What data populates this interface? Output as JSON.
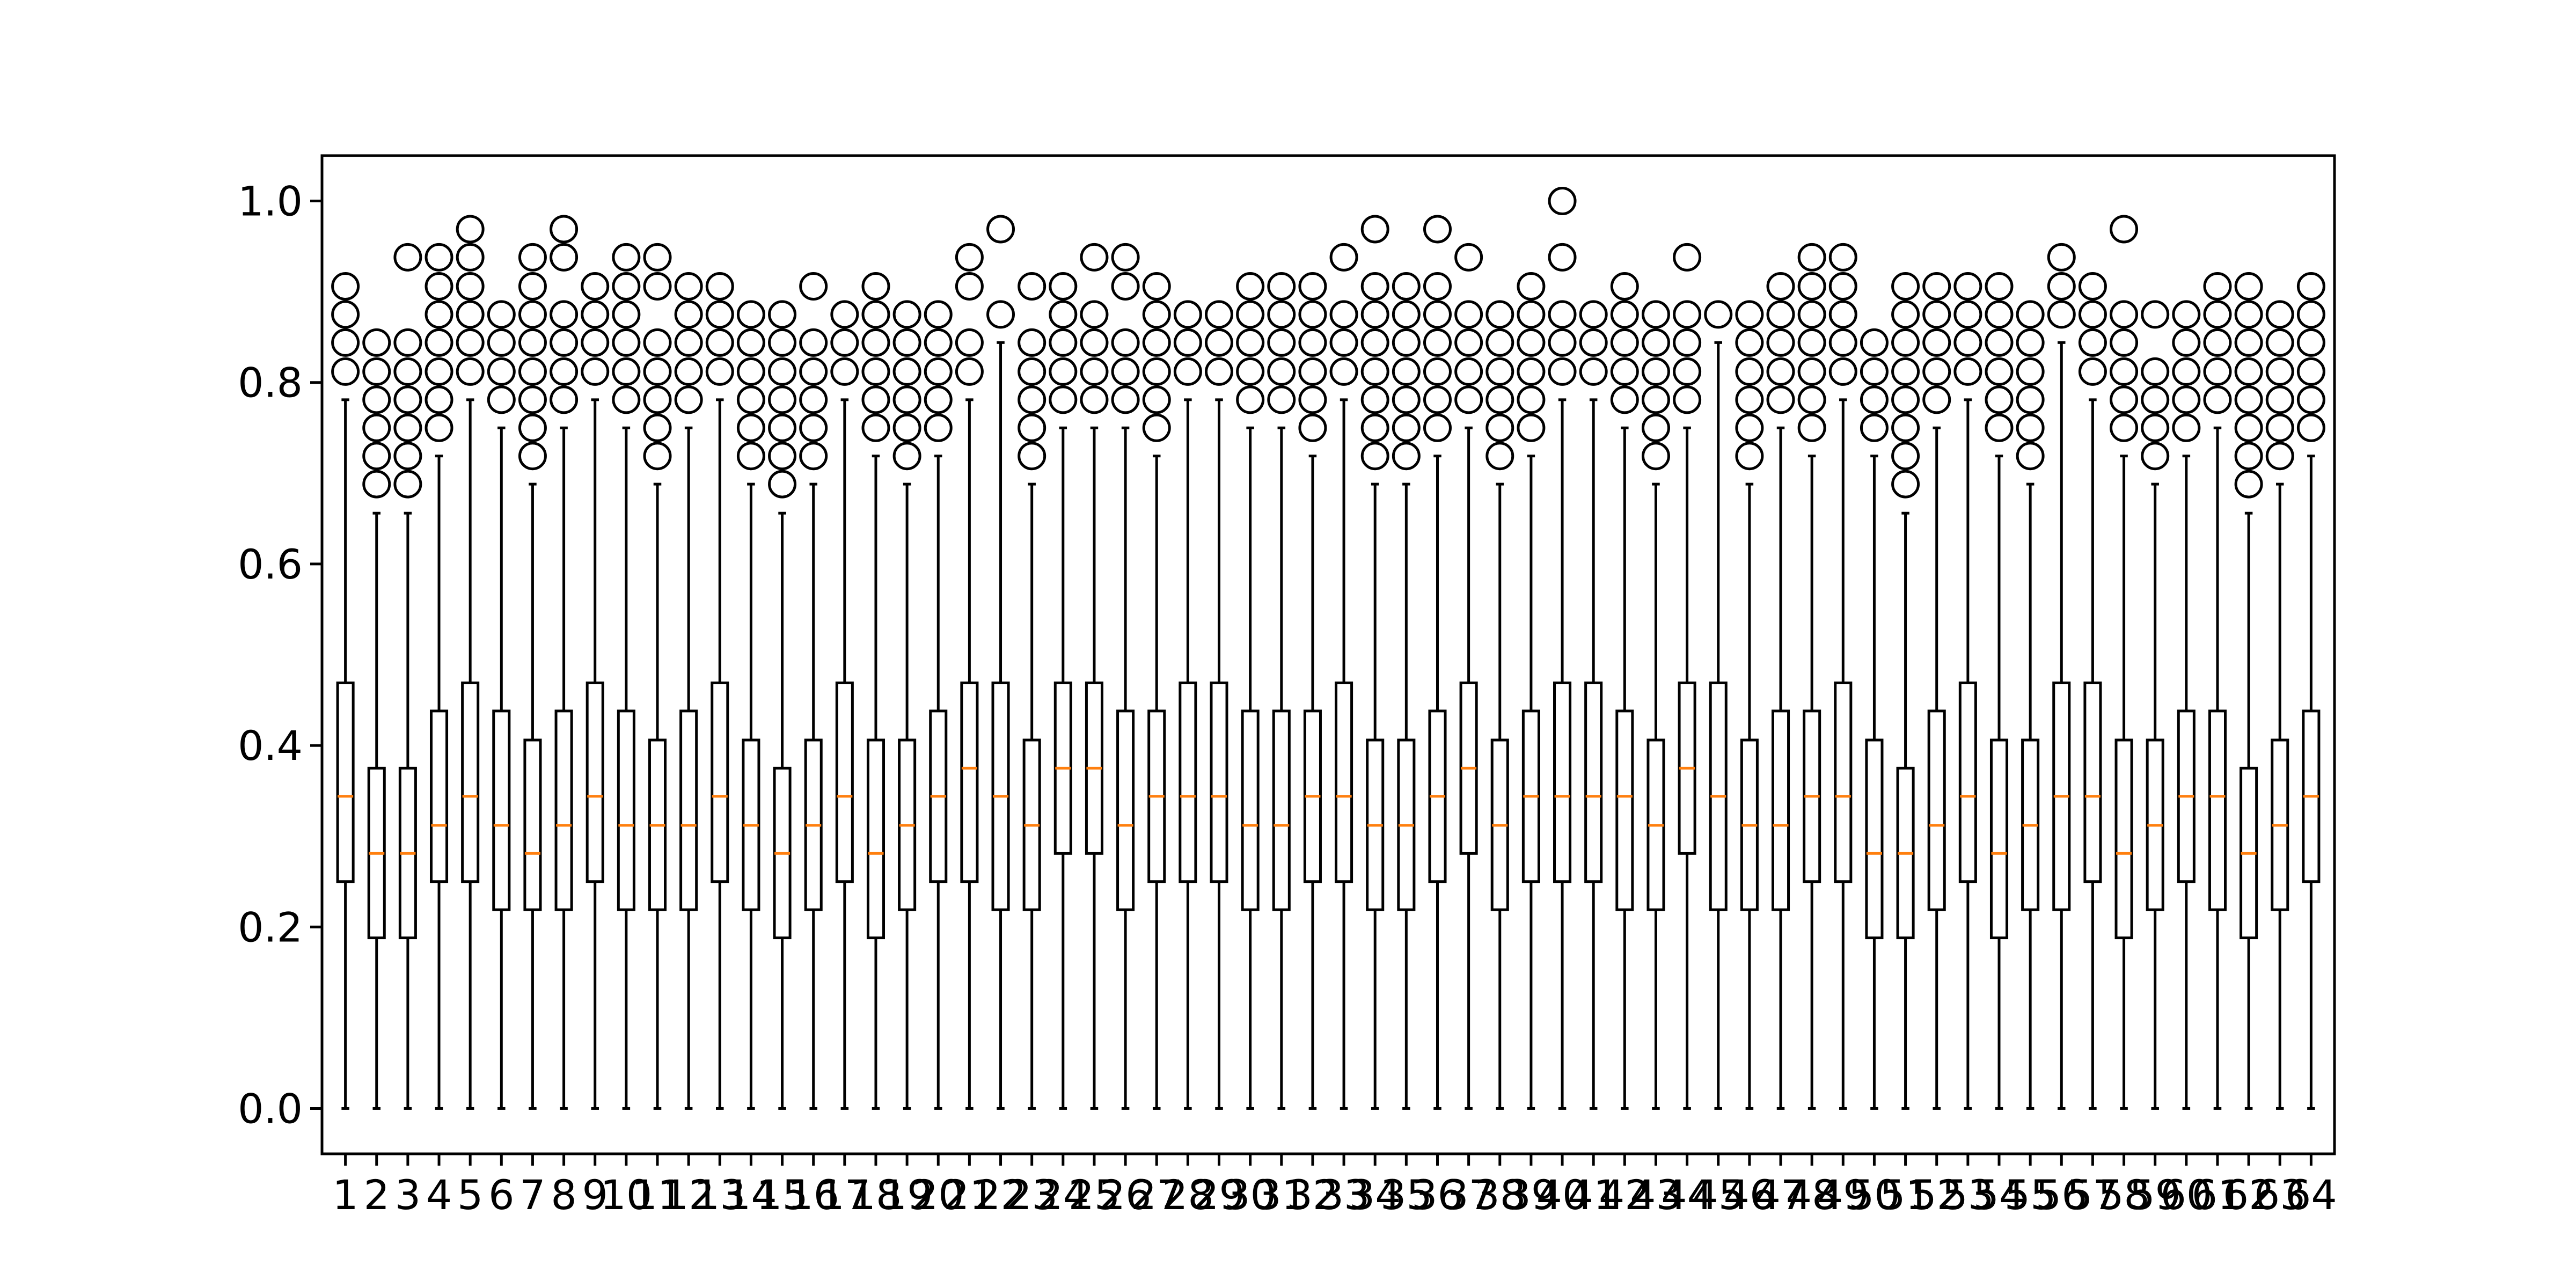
{
  "chart_data": {
    "type": "boxplot",
    "title": "",
    "xlabel": "",
    "ylabel": "",
    "ylim": [
      -0.05,
      1.05
    ],
    "y_ticks": [
      0.0,
      0.2,
      0.4,
      0.6,
      0.8,
      1.0
    ],
    "y_tick_labels": [
      "0.0",
      "0.2",
      "0.4",
      "0.6",
      "0.8",
      "1.0"
    ],
    "categories": [
      "1",
      "2",
      "3",
      "4",
      "5",
      "6",
      "7",
      "8",
      "9",
      "10",
      "11",
      "12",
      "13",
      "14",
      "15",
      "16",
      "17",
      "18",
      "19",
      "20",
      "21",
      "22",
      "23",
      "24",
      "25",
      "26",
      "27",
      "28",
      "29",
      "30",
      "31",
      "32",
      "33",
      "34",
      "35",
      "36",
      "37",
      "38",
      "39",
      "40",
      "41",
      "42",
      "43",
      "44",
      "45",
      "46",
      "47",
      "48",
      "49",
      "50",
      "51",
      "52",
      "53",
      "54",
      "55",
      "56",
      "57",
      "58",
      "59",
      "60",
      "61",
      "62",
      "63",
      "64"
    ],
    "grid": false,
    "legend": "none",
    "box_edge_color": "#000000",
    "median_color": "#ff7f0e",
    "flier_style": "open-circle",
    "boxes": [
      {
        "q1": 0.25,
        "median": 0.344,
        "q3": 0.469,
        "whisker_low": 0.0,
        "whisker_high": 0.781,
        "fliers": [
          0.812,
          0.844,
          0.875,
          0.906
        ]
      },
      {
        "q1": 0.188,
        "median": 0.281,
        "q3": 0.375,
        "whisker_low": 0.0,
        "whisker_high": 0.656,
        "fliers": [
          0.688,
          0.719,
          0.75,
          0.781,
          0.812,
          0.844
        ]
      },
      {
        "q1": 0.188,
        "median": 0.281,
        "q3": 0.375,
        "whisker_low": 0.0,
        "whisker_high": 0.656,
        "fliers": [
          0.688,
          0.719,
          0.75,
          0.781,
          0.812,
          0.844,
          0.938
        ]
      },
      {
        "q1": 0.25,
        "median": 0.312,
        "q3": 0.438,
        "whisker_low": 0.0,
        "whisker_high": 0.719,
        "fliers": [
          0.75,
          0.781,
          0.812,
          0.844,
          0.875,
          0.906,
          0.938
        ]
      },
      {
        "q1": 0.25,
        "median": 0.344,
        "q3": 0.469,
        "whisker_low": 0.0,
        "whisker_high": 0.781,
        "fliers": [
          0.812,
          0.844,
          0.875,
          0.906,
          0.938,
          0.969
        ]
      },
      {
        "q1": 0.219,
        "median": 0.312,
        "q3": 0.438,
        "whisker_low": 0.0,
        "whisker_high": 0.75,
        "fliers": [
          0.781,
          0.812,
          0.844,
          0.875
        ]
      },
      {
        "q1": 0.219,
        "median": 0.281,
        "q3": 0.406,
        "whisker_low": 0.0,
        "whisker_high": 0.688,
        "fliers": [
          0.719,
          0.75,
          0.781,
          0.812,
          0.844,
          0.875,
          0.906,
          0.938
        ]
      },
      {
        "q1": 0.219,
        "median": 0.312,
        "q3": 0.438,
        "whisker_low": 0.0,
        "whisker_high": 0.75,
        "fliers": [
          0.781,
          0.812,
          0.844,
          0.875,
          0.938,
          0.969
        ]
      },
      {
        "q1": 0.25,
        "median": 0.344,
        "q3": 0.469,
        "whisker_low": 0.0,
        "whisker_high": 0.781,
        "fliers": [
          0.812,
          0.844,
          0.875,
          0.906
        ]
      },
      {
        "q1": 0.219,
        "median": 0.312,
        "q3": 0.438,
        "whisker_low": 0.0,
        "whisker_high": 0.75,
        "fliers": [
          0.781,
          0.812,
          0.844,
          0.875,
          0.906,
          0.938
        ]
      },
      {
        "q1": 0.219,
        "median": 0.312,
        "q3": 0.406,
        "whisker_low": 0.0,
        "whisker_high": 0.688,
        "fliers": [
          0.719,
          0.75,
          0.781,
          0.812,
          0.844,
          0.906,
          0.938
        ]
      },
      {
        "q1": 0.219,
        "median": 0.312,
        "q3": 0.438,
        "whisker_low": 0.0,
        "whisker_high": 0.75,
        "fliers": [
          0.781,
          0.812,
          0.844,
          0.875,
          0.906
        ]
      },
      {
        "q1": 0.25,
        "median": 0.344,
        "q3": 0.469,
        "whisker_low": 0.0,
        "whisker_high": 0.781,
        "fliers": [
          0.812,
          0.844,
          0.875,
          0.906
        ]
      },
      {
        "q1": 0.219,
        "median": 0.312,
        "q3": 0.406,
        "whisker_low": 0.0,
        "whisker_high": 0.688,
        "fliers": [
          0.719,
          0.75,
          0.781,
          0.812,
          0.844,
          0.875
        ]
      },
      {
        "q1": 0.188,
        "median": 0.281,
        "q3": 0.375,
        "whisker_low": 0.0,
        "whisker_high": 0.656,
        "fliers": [
          0.688,
          0.719,
          0.75,
          0.781,
          0.812,
          0.844,
          0.875
        ]
      },
      {
        "q1": 0.219,
        "median": 0.312,
        "q3": 0.406,
        "whisker_low": 0.0,
        "whisker_high": 0.688,
        "fliers": [
          0.719,
          0.75,
          0.781,
          0.812,
          0.844,
          0.906
        ]
      },
      {
        "q1": 0.25,
        "median": 0.344,
        "q3": 0.469,
        "whisker_low": 0.0,
        "whisker_high": 0.781,
        "fliers": [
          0.812,
          0.844,
          0.875
        ]
      },
      {
        "q1": 0.188,
        "median": 0.281,
        "q3": 0.406,
        "whisker_low": 0.0,
        "whisker_high": 0.719,
        "fliers": [
          0.75,
          0.781,
          0.812,
          0.844,
          0.875,
          0.906
        ]
      },
      {
        "q1": 0.219,
        "median": 0.312,
        "q3": 0.406,
        "whisker_low": 0.0,
        "whisker_high": 0.688,
        "fliers": [
          0.719,
          0.75,
          0.781,
          0.812,
          0.844,
          0.875
        ]
      },
      {
        "q1": 0.25,
        "median": 0.344,
        "q3": 0.438,
        "whisker_low": 0.0,
        "whisker_high": 0.719,
        "fliers": [
          0.75,
          0.781,
          0.812,
          0.844,
          0.875
        ]
      },
      {
        "q1": 0.25,
        "median": 0.375,
        "q3": 0.469,
        "whisker_low": 0.0,
        "whisker_high": 0.781,
        "fliers": [
          0.812,
          0.844,
          0.906,
          0.938
        ]
      },
      {
        "q1": 0.219,
        "median": 0.344,
        "q3": 0.469,
        "whisker_low": 0.0,
        "whisker_high": 0.844,
        "fliers": [
          0.875,
          0.969
        ]
      },
      {
        "q1": 0.219,
        "median": 0.312,
        "q3": 0.406,
        "whisker_low": 0.0,
        "whisker_high": 0.688,
        "fliers": [
          0.719,
          0.75,
          0.781,
          0.812,
          0.844,
          0.906
        ]
      },
      {
        "q1": 0.281,
        "median": 0.375,
        "q3": 0.469,
        "whisker_low": 0.0,
        "whisker_high": 0.75,
        "fliers": [
          0.781,
          0.812,
          0.844,
          0.875,
          0.906
        ]
      },
      {
        "q1": 0.281,
        "median": 0.375,
        "q3": 0.469,
        "whisker_low": 0.0,
        "whisker_high": 0.75,
        "fliers": [
          0.781,
          0.812,
          0.844,
          0.875,
          0.938
        ]
      },
      {
        "q1": 0.219,
        "median": 0.312,
        "q3": 0.438,
        "whisker_low": 0.0,
        "whisker_high": 0.75,
        "fliers": [
          0.781,
          0.812,
          0.844,
          0.906,
          0.938
        ]
      },
      {
        "q1": 0.25,
        "median": 0.344,
        "q3": 0.438,
        "whisker_low": 0.0,
        "whisker_high": 0.719,
        "fliers": [
          0.75,
          0.781,
          0.812,
          0.844,
          0.875,
          0.906
        ]
      },
      {
        "q1": 0.25,
        "median": 0.344,
        "q3": 0.469,
        "whisker_low": 0.0,
        "whisker_high": 0.781,
        "fliers": [
          0.812,
          0.844,
          0.875
        ]
      },
      {
        "q1": 0.25,
        "median": 0.344,
        "q3": 0.469,
        "whisker_low": 0.0,
        "whisker_high": 0.781,
        "fliers": [
          0.812,
          0.844,
          0.875
        ]
      },
      {
        "q1": 0.219,
        "median": 0.312,
        "q3": 0.438,
        "whisker_low": 0.0,
        "whisker_high": 0.75,
        "fliers": [
          0.781,
          0.812,
          0.844,
          0.875,
          0.906
        ]
      },
      {
        "q1": 0.219,
        "median": 0.312,
        "q3": 0.438,
        "whisker_low": 0.0,
        "whisker_high": 0.75,
        "fliers": [
          0.781,
          0.812,
          0.844,
          0.875,
          0.906
        ]
      },
      {
        "q1": 0.25,
        "median": 0.344,
        "q3": 0.438,
        "whisker_low": 0.0,
        "whisker_high": 0.719,
        "fliers": [
          0.75,
          0.781,
          0.812,
          0.844,
          0.875,
          0.906
        ]
      },
      {
        "q1": 0.25,
        "median": 0.344,
        "q3": 0.469,
        "whisker_low": 0.0,
        "whisker_high": 0.781,
        "fliers": [
          0.812,
          0.844,
          0.875,
          0.938
        ]
      },
      {
        "q1": 0.219,
        "median": 0.312,
        "q3": 0.406,
        "whisker_low": 0.0,
        "whisker_high": 0.688,
        "fliers": [
          0.719,
          0.75,
          0.781,
          0.812,
          0.844,
          0.875,
          0.906,
          0.969
        ]
      },
      {
        "q1": 0.219,
        "median": 0.312,
        "q3": 0.406,
        "whisker_low": 0.0,
        "whisker_high": 0.688,
        "fliers": [
          0.719,
          0.75,
          0.781,
          0.812,
          0.844,
          0.875,
          0.906
        ]
      },
      {
        "q1": 0.25,
        "median": 0.344,
        "q3": 0.438,
        "whisker_low": 0.0,
        "whisker_high": 0.719,
        "fliers": [
          0.75,
          0.781,
          0.812,
          0.844,
          0.875,
          0.906,
          0.969
        ]
      },
      {
        "q1": 0.281,
        "median": 0.375,
        "q3": 0.469,
        "whisker_low": 0.0,
        "whisker_high": 0.75,
        "fliers": [
          0.781,
          0.812,
          0.844,
          0.875,
          0.938
        ]
      },
      {
        "q1": 0.219,
        "median": 0.312,
        "q3": 0.406,
        "whisker_low": 0.0,
        "whisker_high": 0.688,
        "fliers": [
          0.719,
          0.75,
          0.781,
          0.812,
          0.844,
          0.875
        ]
      },
      {
        "q1": 0.25,
        "median": 0.344,
        "q3": 0.438,
        "whisker_low": 0.0,
        "whisker_high": 0.719,
        "fliers": [
          0.75,
          0.781,
          0.812,
          0.844,
          0.875,
          0.906
        ]
      },
      {
        "q1": 0.25,
        "median": 0.344,
        "q3": 0.469,
        "whisker_low": 0.0,
        "whisker_high": 0.781,
        "fliers": [
          0.812,
          0.844,
          0.875,
          0.938,
          1.0
        ]
      },
      {
        "q1": 0.25,
        "median": 0.344,
        "q3": 0.469,
        "whisker_low": 0.0,
        "whisker_high": 0.781,
        "fliers": [
          0.812,
          0.844,
          0.875
        ]
      },
      {
        "q1": 0.219,
        "median": 0.344,
        "q3": 0.438,
        "whisker_low": 0.0,
        "whisker_high": 0.75,
        "fliers": [
          0.781,
          0.812,
          0.844,
          0.875,
          0.906
        ]
      },
      {
        "q1": 0.219,
        "median": 0.312,
        "q3": 0.406,
        "whisker_low": 0.0,
        "whisker_high": 0.688,
        "fliers": [
          0.719,
          0.75,
          0.781,
          0.812,
          0.844,
          0.875
        ]
      },
      {
        "q1": 0.281,
        "median": 0.375,
        "q3": 0.469,
        "whisker_low": 0.0,
        "whisker_high": 0.75,
        "fliers": [
          0.781,
          0.812,
          0.844,
          0.875,
          0.938
        ]
      },
      {
        "q1": 0.219,
        "median": 0.344,
        "q3": 0.469,
        "whisker_low": 0.0,
        "whisker_high": 0.844,
        "fliers": [
          0.875
        ]
      },
      {
        "q1": 0.219,
        "median": 0.312,
        "q3": 0.406,
        "whisker_low": 0.0,
        "whisker_high": 0.688,
        "fliers": [
          0.719,
          0.75,
          0.781,
          0.812,
          0.844,
          0.875
        ]
      },
      {
        "q1": 0.219,
        "median": 0.312,
        "q3": 0.438,
        "whisker_low": 0.0,
        "whisker_high": 0.75,
        "fliers": [
          0.781,
          0.812,
          0.844,
          0.875,
          0.906
        ]
      },
      {
        "q1": 0.25,
        "median": 0.344,
        "q3": 0.438,
        "whisker_low": 0.0,
        "whisker_high": 0.719,
        "fliers": [
          0.75,
          0.781,
          0.812,
          0.844,
          0.875,
          0.906,
          0.938
        ]
      },
      {
        "q1": 0.25,
        "median": 0.344,
        "q3": 0.469,
        "whisker_low": 0.0,
        "whisker_high": 0.781,
        "fliers": [
          0.812,
          0.844,
          0.875,
          0.906,
          0.938
        ]
      },
      {
        "q1": 0.188,
        "median": 0.281,
        "q3": 0.406,
        "whisker_low": 0.0,
        "whisker_high": 0.719,
        "fliers": [
          0.75,
          0.781,
          0.812,
          0.844
        ]
      },
      {
        "q1": 0.188,
        "median": 0.281,
        "q3": 0.375,
        "whisker_low": 0.0,
        "whisker_high": 0.656,
        "fliers": [
          0.688,
          0.719,
          0.75,
          0.781,
          0.812,
          0.844,
          0.875,
          0.906
        ]
      },
      {
        "q1": 0.219,
        "median": 0.312,
        "q3": 0.438,
        "whisker_low": 0.0,
        "whisker_high": 0.75,
        "fliers": [
          0.781,
          0.812,
          0.844,
          0.875,
          0.906
        ]
      },
      {
        "q1": 0.25,
        "median": 0.344,
        "q3": 0.469,
        "whisker_low": 0.0,
        "whisker_high": 0.781,
        "fliers": [
          0.812,
          0.844,
          0.875,
          0.906
        ]
      },
      {
        "q1": 0.188,
        "median": 0.281,
        "q3": 0.406,
        "whisker_low": 0.0,
        "whisker_high": 0.719,
        "fliers": [
          0.75,
          0.781,
          0.812,
          0.844,
          0.875,
          0.906
        ]
      },
      {
        "q1": 0.219,
        "median": 0.312,
        "q3": 0.406,
        "whisker_low": 0.0,
        "whisker_high": 0.688,
        "fliers": [
          0.719,
          0.75,
          0.781,
          0.812,
          0.844,
          0.875
        ]
      },
      {
        "q1": 0.219,
        "median": 0.344,
        "q3": 0.469,
        "whisker_low": 0.0,
        "whisker_high": 0.844,
        "fliers": [
          0.875,
          0.906,
          0.938
        ]
      },
      {
        "q1": 0.25,
        "median": 0.344,
        "q3": 0.469,
        "whisker_low": 0.0,
        "whisker_high": 0.781,
        "fliers": [
          0.812,
          0.844,
          0.875,
          0.906
        ]
      },
      {
        "q1": 0.188,
        "median": 0.281,
        "q3": 0.406,
        "whisker_low": 0.0,
        "whisker_high": 0.719,
        "fliers": [
          0.75,
          0.781,
          0.812,
          0.844,
          0.875,
          0.969
        ]
      },
      {
        "q1": 0.219,
        "median": 0.312,
        "q3": 0.406,
        "whisker_low": 0.0,
        "whisker_high": 0.688,
        "fliers": [
          0.719,
          0.75,
          0.781,
          0.812,
          0.875
        ]
      },
      {
        "q1": 0.25,
        "median": 0.344,
        "q3": 0.438,
        "whisker_low": 0.0,
        "whisker_high": 0.719,
        "fliers": [
          0.75,
          0.781,
          0.812,
          0.844,
          0.875
        ]
      },
      {
        "q1": 0.219,
        "median": 0.344,
        "q3": 0.438,
        "whisker_low": 0.0,
        "whisker_high": 0.75,
        "fliers": [
          0.781,
          0.812,
          0.844,
          0.875,
          0.906
        ]
      },
      {
        "q1": 0.188,
        "median": 0.281,
        "q3": 0.375,
        "whisker_low": 0.0,
        "whisker_high": 0.656,
        "fliers": [
          0.688,
          0.719,
          0.75,
          0.781,
          0.812,
          0.844,
          0.875,
          0.906
        ]
      },
      {
        "q1": 0.219,
        "median": 0.312,
        "q3": 0.406,
        "whisker_low": 0.0,
        "whisker_high": 0.688,
        "fliers": [
          0.719,
          0.75,
          0.781,
          0.812,
          0.844,
          0.875
        ]
      },
      {
        "q1": 0.25,
        "median": 0.344,
        "q3": 0.438,
        "whisker_low": 0.0,
        "whisker_high": 0.719,
        "fliers": [
          0.75,
          0.781,
          0.812,
          0.844,
          0.875,
          0.906
        ]
      }
    ]
  }
}
